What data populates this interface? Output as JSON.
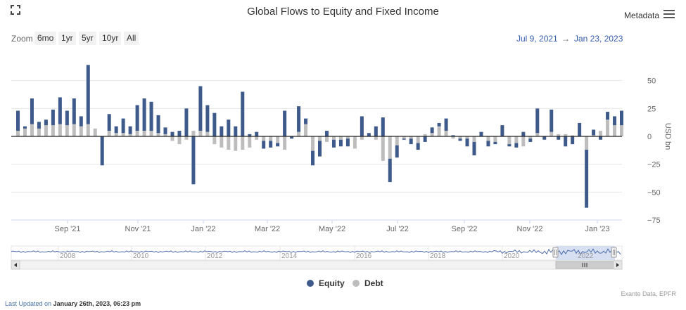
{
  "header": {
    "title": "Global Flows to Equity and Fixed Income",
    "metadata_label": "Metadata"
  },
  "zoom": {
    "label": "Zoom",
    "buttons": [
      "6mo",
      "1yr",
      "5yr",
      "10yr",
      "All"
    ]
  },
  "range": {
    "from": "Jul 9, 2021",
    "arrow": "→",
    "to": "Jan 23, 2023"
  },
  "footer": {
    "source": "Exante Data, EPFR",
    "last_updated_prefix": "Last Updated on",
    "last_updated_value": "January 26th, 2023, 06:23 pm"
  },
  "colors": {
    "equity": "#3d5a8a",
    "debt": "#bdbdbd",
    "navigator_fill": "#c6d3ec",
    "navigator_line": "#4a6aa8"
  },
  "chart_data": {
    "type": "bar",
    "stacking": "normal",
    "y_axis": {
      "label": "USD bn",
      "position": "right",
      "ylim": [
        -75,
        62
      ],
      "ticks": [
        50,
        25,
        0,
        -25,
        -50,
        -75
      ]
    },
    "x_ticks": [
      "Sep '21",
      "Nov '21",
      "Jan '22",
      "Mar '22",
      "May '22",
      "Jul '22",
      "Sep '22",
      "Nov '22",
      "Jan '23"
    ],
    "grid": true,
    "legend_position": "bottom-center",
    "series": [
      {
        "name": "Equity",
        "values": [
          18,
          2,
          23,
          6,
          5,
          14,
          24,
          13,
          23,
          9,
          53,
          0,
          -26,
          15,
          6,
          13,
          7,
          23,
          29,
          26,
          16,
          6,
          4,
          5,
          25,
          -43,
          40,
          24,
          21,
          9,
          15,
          9,
          40,
          2,
          4,
          -7,
          -6,
          -3,
          23,
          -2,
          23,
          5,
          -13,
          -14,
          5,
          -7,
          -6,
          -7,
          0,
          18,
          3,
          9,
          17,
          -21,
          -11,
          -1,
          -5,
          -6,
          -5,
          5,
          3,
          11,
          1,
          -2,
          -7,
          -12,
          4,
          -5,
          -2,
          10,
          -2,
          -4,
          4,
          -3,
          22,
          -3,
          20,
          -3,
          -9,
          -7,
          12,
          -52,
          5,
          -3,
          7,
          8,
          13
        ]
      },
      {
        "name": "Debt",
        "values": [
          5,
          7,
          11,
          7,
          10,
          10,
          11,
          10,
          11,
          9,
          11,
          7,
          0,
          5,
          3,
          3,
          2,
          5,
          5,
          5,
          3,
          2,
          -4,
          -7,
          -3,
          5,
          5,
          4,
          -7,
          -10,
          -12,
          -13,
          -12,
          -10,
          -3,
          -4,
          -4,
          -6,
          -12,
          0,
          4,
          11,
          -13,
          -4,
          -5,
          -3,
          -3,
          -2,
          -11,
          -3,
          0,
          -3,
          -22,
          -20,
          -8,
          -2,
          -2,
          -6,
          2,
          3,
          9,
          5,
          -2,
          -2,
          -2,
          -5,
          0,
          -4,
          -5,
          0,
          -7,
          -6,
          -9,
          -2,
          3,
          0,
          4,
          2,
          2,
          1,
          0,
          -12,
          1,
          5,
          15,
          10,
          10
        ]
      }
    ],
    "navigator": {
      "x_ticks": [
        "2008",
        "2010",
        "2012",
        "2014",
        "2016",
        "2018",
        "2020",
        "2022"
      ]
    }
  }
}
